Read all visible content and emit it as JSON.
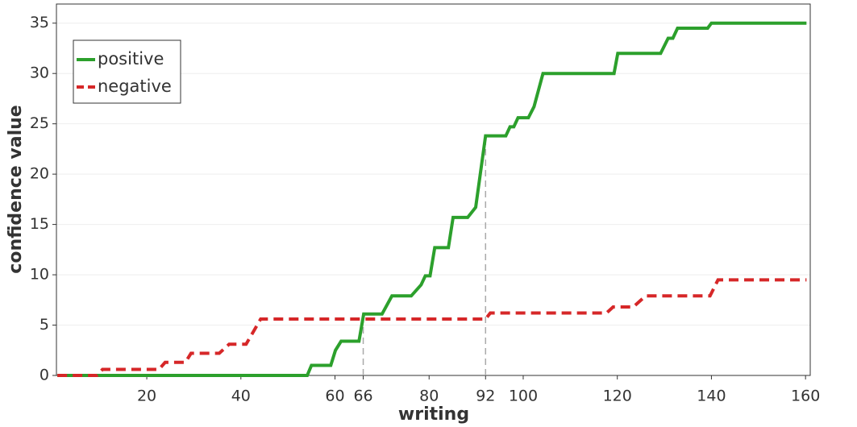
{
  "chart_data": {
    "type": "line",
    "x_label": "writing",
    "y_label": "confidence value",
    "xlim": [
      0.8,
      161
    ],
    "ylim": [
      0,
      36.9
    ],
    "xticks": [
      20,
      40,
      60,
      66,
      80,
      92,
      100,
      120,
      140,
      160
    ],
    "yticks": [
      0,
      5,
      10,
      15,
      20,
      25,
      30,
      35
    ],
    "grid": true,
    "legend_position": "upper left",
    "reference_lines": [
      {
        "x": 66,
        "y": 6.1
      },
      {
        "x": 92,
        "y": 23.8
      }
    ],
    "series": [
      {
        "name": "positive",
        "color": "#2ca02c",
        "dash": false,
        "x": [
          1,
          54.1,
          55,
          59.1,
          60.1,
          61.3,
          65.1,
          66.1,
          70,
          72.1,
          76.2,
          78.3,
          79.2,
          80.2,
          81.2,
          84.1,
          85.1,
          88.2,
          89.9,
          92,
          96.3,
          97.2,
          98,
          98.9,
          101.1,
          102.3,
          104.2,
          119.3,
          120.1,
          129.2,
          130.8,
          131.8,
          132.8,
          139.2,
          140,
          160.2
        ],
        "values": [
          0,
          0,
          1,
          1,
          2.5,
          3.4,
          3.4,
          6.1,
          6.1,
          7.9,
          7.9,
          9,
          9.9,
          9.9,
          12.7,
          12.7,
          15.7,
          15.7,
          16.7,
          23.8,
          23.8,
          24.7,
          24.7,
          25.6,
          25.6,
          26.7,
          30,
          30,
          32,
          32,
          33.5,
          33.5,
          34.5,
          34.5,
          35,
          35
        ]
      },
      {
        "name": "negative",
        "color": "#d62728",
        "dash": true,
        "x": [
          1,
          9.4,
          10.6,
          22.6,
          23.9,
          28.2,
          29.4,
          35.4,
          37.5,
          41.1,
          44.2,
          92,
          93,
          117.7,
          119.1,
          123.4,
          126,
          139.7,
          141.4,
          160.2
        ],
        "values": [
          0,
          0,
          0.6,
          0.6,
          1.3,
          1.3,
          2.2,
          2.2,
          3.1,
          3.1,
          5.6,
          5.6,
          6.2,
          6.2,
          6.8,
          6.8,
          7.9,
          7.9,
          9.5,
          9.5
        ]
      }
    ]
  }
}
